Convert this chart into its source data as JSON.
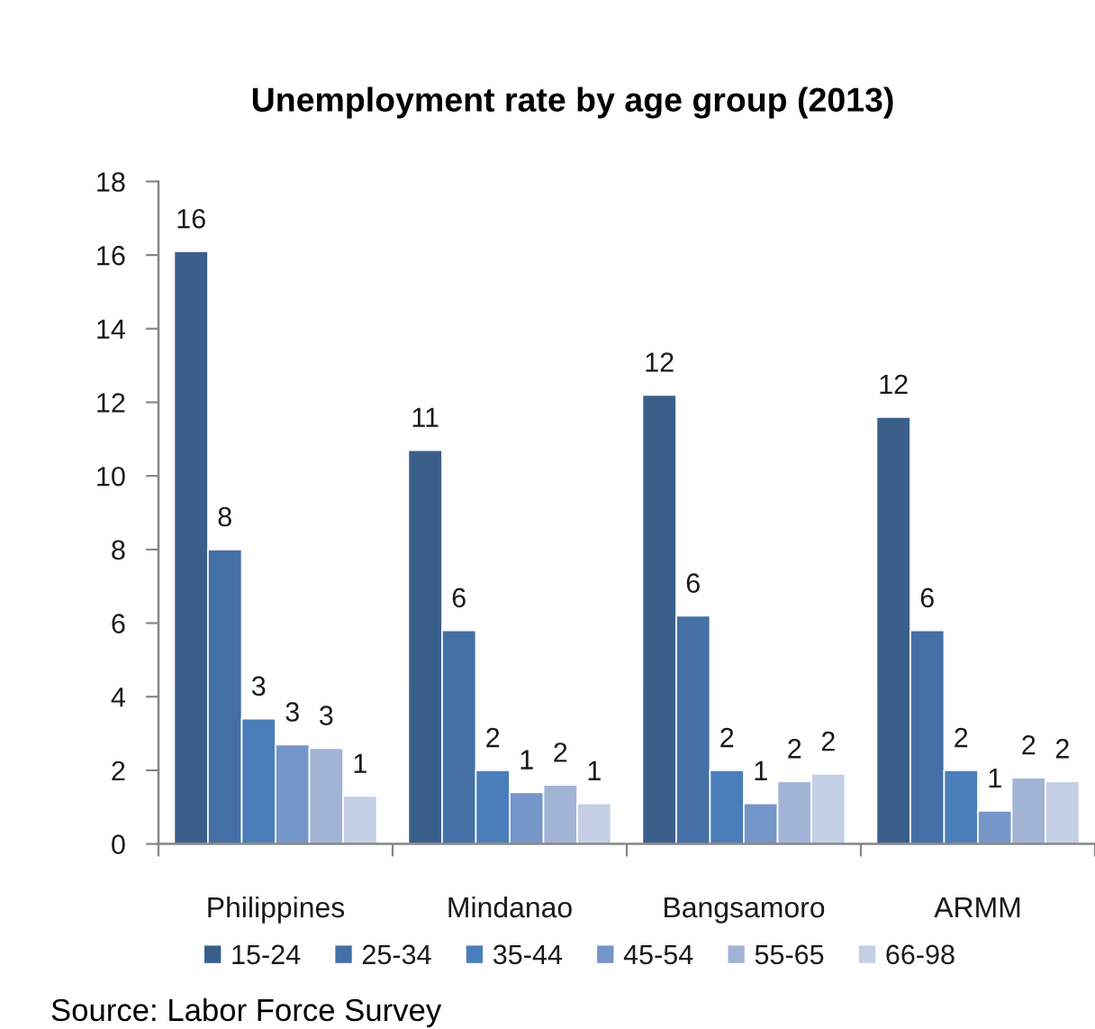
{
  "chart_data": {
    "type": "bar",
    "title": "Unemployment rate by age group (2013)",
    "categories": [
      "Philippines",
      "Mindanao",
      "Bangsamoro",
      "ARMM"
    ],
    "series": [
      {
        "name": "15-24",
        "color": "#3a5f8b",
        "values": [
          16.1,
          10.7,
          12.2,
          11.6
        ],
        "value_labels": [
          "16",
          "11",
          "12",
          "12"
        ]
      },
      {
        "name": "25-34",
        "color": "#4470a6",
        "values": [
          8.0,
          5.8,
          6.2,
          5.8
        ],
        "value_labels": [
          "8",
          "6",
          "6",
          "6"
        ]
      },
      {
        "name": "35-44",
        "color": "#4a7ebb",
        "values": [
          3.4,
          2.0,
          2.0,
          2.0
        ],
        "value_labels": [
          "3",
          "2",
          "2",
          "2"
        ]
      },
      {
        "name": "45-54",
        "color": "#7596c8",
        "values": [
          2.7,
          1.4,
          1.1,
          0.9
        ],
        "value_labels": [
          "3",
          "1",
          "1",
          "1"
        ]
      },
      {
        "name": "55-65",
        "color": "#a2b4d6",
        "values": [
          2.6,
          1.6,
          1.7,
          1.8
        ],
        "value_labels": [
          "3",
          "2",
          "2",
          "2"
        ]
      },
      {
        "name": "66-98",
        "color": "#c4cfe5",
        "values": [
          1.3,
          1.1,
          1.9,
          1.7
        ],
        "value_labels": [
          "1",
          "1",
          "2",
          "2"
        ]
      }
    ],
    "ylim": [
      0,
      18
    ],
    "yticks": [
      0,
      2,
      4,
      6,
      8,
      10,
      12,
      14,
      16,
      18
    ],
    "grid": false,
    "legend": "bottom",
    "annotations": [
      "Source: Labor Force Survey"
    ]
  }
}
